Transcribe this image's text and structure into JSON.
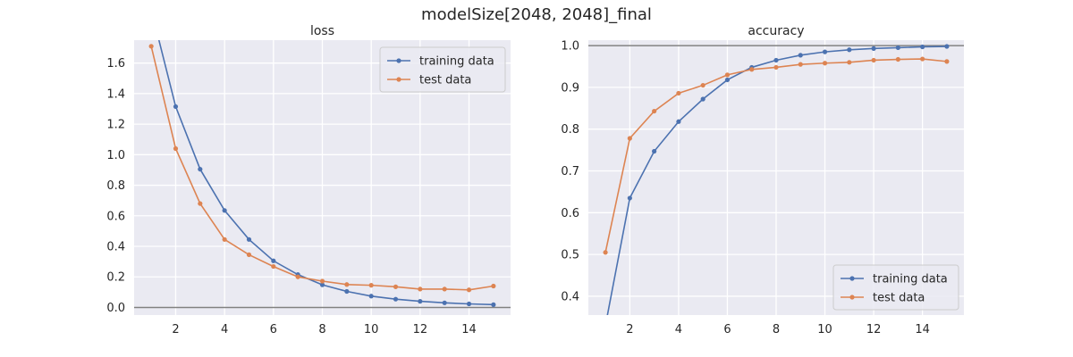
{
  "figure": {
    "title": "modelSize[2048, 2048]_final"
  },
  "chart_data": [
    {
      "type": "line",
      "title": "loss",
      "xlabel": "",
      "ylabel": "",
      "x": [
        1,
        2,
        3,
        4,
        5,
        6,
        7,
        8,
        9,
        10,
        11,
        12,
        13,
        14,
        15
      ],
      "xlim": [
        0.3,
        15.7
      ],
      "ylim": [
        -0.05,
        1.75
      ],
      "xticks": [
        2,
        4,
        6,
        8,
        10,
        12,
        14
      ],
      "yticks": [
        0.0,
        0.2,
        0.4,
        0.6,
        0.8,
        1.0,
        1.2,
        1.4,
        1.6
      ],
      "ytick_decimals": 1,
      "grid": true,
      "legend_position": "upper-right",
      "reference_line": 0.0,
      "series": [
        {
          "name": "training data",
          "color": "#4c72b0",
          "values": [
            1.95,
            1.315,
            0.905,
            0.635,
            0.445,
            0.305,
            0.215,
            0.148,
            0.105,
            0.074,
            0.054,
            0.04,
            0.03,
            0.023,
            0.018
          ]
        },
        {
          "name": "test data",
          "color": "#dd8452",
          "values": [
            1.71,
            1.04,
            0.68,
            0.445,
            0.345,
            0.268,
            0.2,
            0.172,
            0.15,
            0.145,
            0.135,
            0.12,
            0.12,
            0.115,
            0.14
          ]
        }
      ]
    },
    {
      "type": "line",
      "title": "accuracy",
      "xlabel": "",
      "ylabel": "",
      "x": [
        1,
        2,
        3,
        4,
        5,
        6,
        7,
        8,
        9,
        10,
        11,
        12,
        13,
        14,
        15
      ],
      "xlim": [
        0.3,
        15.7
      ],
      "ylim": [
        0.355,
        1.013
      ],
      "xticks": [
        2,
        4,
        6,
        8,
        10,
        12,
        14
      ],
      "yticks": [
        0.4,
        0.5,
        0.6,
        0.7,
        0.8,
        0.9,
        1.0
      ],
      "ytick_decimals": 1,
      "grid": true,
      "legend_position": "lower-right",
      "reference_line": 1.0,
      "series": [
        {
          "name": "training data",
          "color": "#4c72b0",
          "values": [
            0.33,
            0.635,
            0.747,
            0.818,
            0.872,
            0.918,
            0.948,
            0.965,
            0.977,
            0.985,
            0.99,
            0.993,
            0.995,
            0.997,
            0.998
          ]
        },
        {
          "name": "test data",
          "color": "#dd8452",
          "values": [
            0.505,
            0.778,
            0.843,
            0.886,
            0.905,
            0.93,
            0.943,
            0.948,
            0.955,
            0.958,
            0.96,
            0.965,
            0.967,
            0.968,
            0.962
          ]
        }
      ]
    }
  ]
}
